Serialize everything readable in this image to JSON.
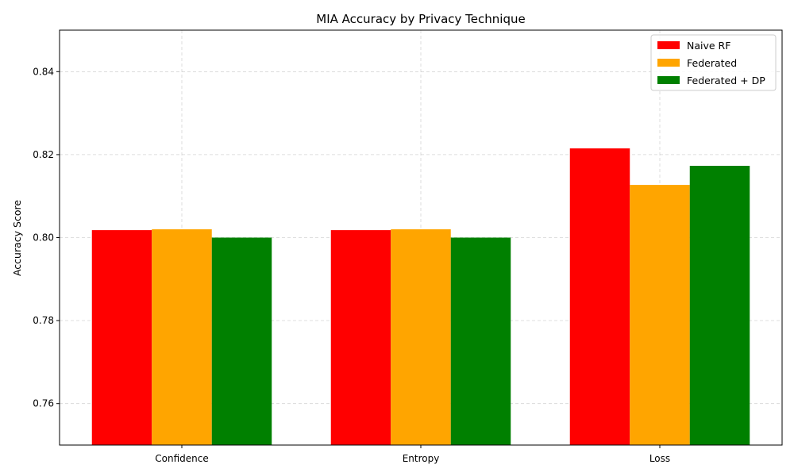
{
  "chart_data": {
    "type": "bar",
    "title": "MIA Accuracy by Privacy Technique",
    "xlabel": "",
    "ylabel": "Accuracy Score",
    "categories": [
      "Confidence",
      "Entropy",
      "Loss"
    ],
    "series": [
      {
        "name": "Naive RF",
        "color": "#ff0000",
        "values": [
          0.8018,
          0.8018,
          0.8215
        ]
      },
      {
        "name": "Federated",
        "color": "#ffa500",
        "values": [
          0.802,
          0.802,
          0.8127
        ]
      },
      {
        "name": "Federated + DP",
        "color": "#008000",
        "values": [
          0.8,
          0.8,
          0.8173
        ]
      }
    ],
    "ylim": [
      0.75,
      0.85
    ],
    "yticks": [
      "0.76",
      "0.78",
      "0.80",
      "0.82",
      "0.84"
    ],
    "grid": true,
    "legend_position": "top-right"
  }
}
